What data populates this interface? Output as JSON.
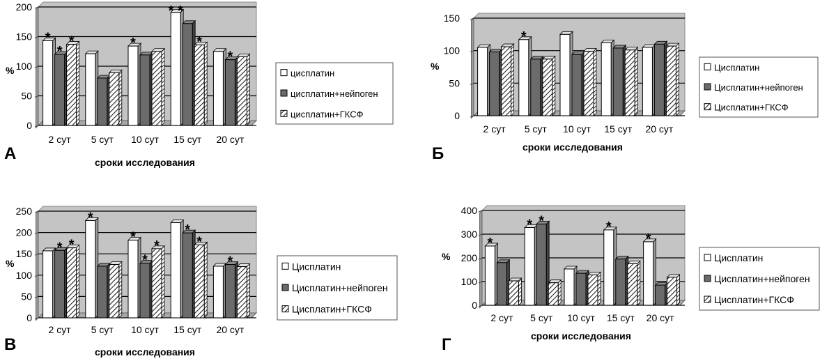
{
  "chart_data": [
    {
      "panel_label": "А",
      "type": "bar",
      "categories": [
        "2 сут",
        "5 сут",
        "10 сут",
        "15 сут",
        "20 сут"
      ],
      "series": [
        {
          "name": "цисплатин",
          "values": [
            143,
            121,
            134,
            191,
            125
          ]
        },
        {
          "name": "цисплатин+нейпоген",
          "values": [
            120,
            80,
            119,
            172,
            111
          ]
        },
        {
          "name": "цисплатин+ГКСФ",
          "values": [
            137,
            89,
            125,
            136,
            116
          ]
        }
      ],
      "ylabel": "%",
      "xlabel": "сроки исследования",
      "ylim": [
        0,
        200
      ],
      "yticks": [
        "0",
        "50",
        "100",
        "150",
        "200"
      ],
      "legend": "right",
      "annotations": [
        {
          "text": "*",
          "category": 0,
          "series": 0
        },
        {
          "text": "*",
          "category": 0,
          "series": 1
        },
        {
          "text": "*",
          "category": 0,
          "series": 2
        },
        {
          "text": "*",
          "category": 2,
          "series": 0
        },
        {
          "text": "* *",
          "category": 3,
          "series": 0
        },
        {
          "text": "*",
          "category": 3,
          "series": 2
        },
        {
          "text": "*",
          "category": 4,
          "series": 1
        }
      ]
    },
    {
      "panel_label": "Б",
      "type": "bar",
      "categories": [
        "2 сут",
        "5 сут",
        "10 сут",
        "15 сут",
        "20 сут"
      ],
      "series": [
        {
          "name": "Цисплатин",
          "values": [
            105,
            117,
            125,
            112,
            105
          ]
        },
        {
          "name": "Цисплатин+нейпоген",
          "values": [
            98,
            87,
            94,
            104,
            110
          ]
        },
        {
          "name": "Цисплатин+ГКСФ",
          "values": [
            106,
            87,
            99,
            101,
            107
          ]
        }
      ],
      "ylabel": "%",
      "xlabel": "сроки исследования",
      "ylim": [
        0,
        150
      ],
      "yticks": [
        "0",
        "50",
        "100",
        "150"
      ],
      "legend": "right",
      "annotations": [
        {
          "text": "*",
          "category": 1,
          "series": 0
        }
      ]
    },
    {
      "panel_label": "В",
      "type": "bar",
      "categories": [
        "2 сут",
        "5 сут",
        "10 сут",
        "15 сут",
        "20 сут"
      ],
      "series": [
        {
          "name": "Цисплатин",
          "values": [
            157,
            228,
            182,
            223,
            121
          ]
        },
        {
          "name": "Цисплатин+нейпоген",
          "values": [
            158,
            121,
            128,
            199,
            125
          ]
        },
        {
          "name": "Цисплатин+ГКСФ",
          "values": [
            164,
            125,
            162,
            171,
            120
          ]
        }
      ],
      "ylabel": "%",
      "xlabel": "сроки исследования",
      "ylim": [
        0,
        250
      ],
      "yticks": [
        "0",
        "50",
        "100",
        "150",
        "200",
        "250"
      ],
      "legend": "right",
      "annotations": [
        {
          "text": "*",
          "category": 0,
          "series": 1
        },
        {
          "text": "*",
          "category": 0,
          "series": 2
        },
        {
          "text": "*",
          "category": 1,
          "series": 0
        },
        {
          "text": "*",
          "category": 2,
          "series": 0
        },
        {
          "text": "*",
          "category": 2,
          "series": 1
        },
        {
          "text": "*",
          "category": 2,
          "series": 2
        },
        {
          "text": "*",
          "category": 3,
          "series": 1
        },
        {
          "text": "*",
          "category": 3,
          "series": 2
        },
        {
          "text": "*",
          "category": 4,
          "series": 1
        }
      ]
    },
    {
      "panel_label": "Г",
      "type": "bar",
      "categories": [
        "2 сут",
        "5 сут",
        "10 сут",
        "15 сут",
        "20 сут"
      ],
      "series": [
        {
          "name": "Цисплатин",
          "values": [
            250,
            328,
            153,
            318,
            268
          ]
        },
        {
          "name": "Цисплатин+нейпоген",
          "values": [
            180,
            343,
            135,
            195,
            85
          ]
        },
        {
          "name": "Цисплатин+ГКСФ",
          "values": [
            103,
            95,
            128,
            175,
            118
          ]
        }
      ],
      "ylabel": "%",
      "xlabel": "сроки исследования",
      "ylim": [
        0,
        400
      ],
      "yticks": [
        "0",
        "100",
        "200",
        "300",
        "400"
      ],
      "legend": "right",
      "annotations": [
        {
          "text": "*",
          "category": 0,
          "series": 0
        },
        {
          "text": "*",
          "category": 1,
          "series": 0
        },
        {
          "text": "*",
          "category": 1,
          "series": 1
        },
        {
          "text": "*",
          "category": 3,
          "series": 0
        },
        {
          "text": "*",
          "category": 4,
          "series": 0
        }
      ]
    }
  ],
  "colors": {
    "plot_background": "#c4c4c4",
    "gridline": "#000000",
    "series_fill": [
      "#ffffff",
      "#6b6b6b",
      "#ffffff"
    ],
    "bar_edge": "#000000",
    "legend_border": "#555555"
  },
  "icons": {
    "series_0": "white-square-swatch",
    "series_1": "gray-square-swatch",
    "series_2": "diagonal-hatched-swatch"
  }
}
